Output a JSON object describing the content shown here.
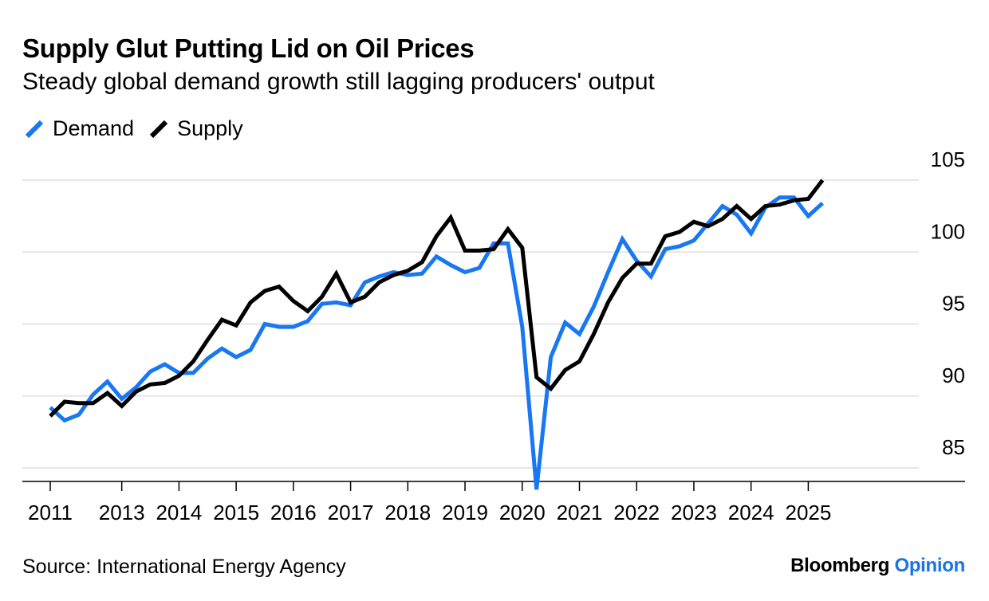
{
  "header": {
    "title": "Supply Glut Putting Lid on Oil Prices",
    "subtitle": "Steady global demand growth still lagging producers' output"
  },
  "footer": {
    "source": "Source: International Energy Agency",
    "brand_main": "Bloomberg",
    "brand_accent": "Opinion"
  },
  "colors": {
    "demand": "#1877f2",
    "supply": "#000000",
    "grid": "#e6e6e6",
    "brand_accent": "#1a73e8"
  },
  "chart_data": {
    "type": "line",
    "title": "Supply Glut Putting Lid on Oil Prices",
    "subtitle": "Steady global demand growth still lagging producers' output",
    "xlabel": "",
    "ylabel": "",
    "y_axis_side": "right",
    "ylim": [
      84,
      105
    ],
    "y_ticks": [
      85,
      90,
      95,
      100,
      105
    ],
    "x_range": [
      2011.0,
      2025.75
    ],
    "x_ticks": [
      {
        "value": 2011.0,
        "label": "2011"
      },
      {
        "value": 2012.25,
        "label": "2013"
      },
      {
        "value": 2013.25,
        "label": "2014"
      },
      {
        "value": 2014.25,
        "label": "2015"
      },
      {
        "value": 2015.25,
        "label": "2016"
      },
      {
        "value": 2016.25,
        "label": "2017"
      },
      {
        "value": 2017.25,
        "label": "2018"
      },
      {
        "value": 2018.25,
        "label": "2019"
      },
      {
        "value": 2019.25,
        "label": "2020"
      },
      {
        "value": 2020.25,
        "label": "2021"
      },
      {
        "value": 2021.25,
        "label": "2022"
      },
      {
        "value": 2022.25,
        "label": "2023"
      },
      {
        "value": 2023.25,
        "label": "2024"
      },
      {
        "value": 2024.25,
        "label": "2025"
      }
    ],
    "grid": true,
    "legend_position": "top-left",
    "series": [
      {
        "name": "Demand",
        "color": "#1877f2",
        "points": [
          [
            2011.0,
            89.2
          ],
          [
            2011.25,
            88.3
          ],
          [
            2011.5,
            88.7
          ],
          [
            2011.75,
            90.1
          ],
          [
            2012.0,
            91.0
          ],
          [
            2012.25,
            89.8
          ],
          [
            2012.5,
            90.6
          ],
          [
            2012.75,
            91.7
          ],
          [
            2013.0,
            92.2
          ],
          [
            2013.25,
            91.6
          ],
          [
            2013.5,
            91.6
          ],
          [
            2013.75,
            92.6
          ],
          [
            2014.0,
            93.3
          ],
          [
            2014.25,
            92.7
          ],
          [
            2014.5,
            93.2
          ],
          [
            2014.75,
            95.0
          ],
          [
            2015.0,
            94.8
          ],
          [
            2015.25,
            94.8
          ],
          [
            2015.5,
            95.2
          ],
          [
            2015.75,
            96.4
          ],
          [
            2016.0,
            96.5
          ],
          [
            2016.25,
            96.3
          ],
          [
            2016.5,
            97.9
          ],
          [
            2016.75,
            98.3
          ],
          [
            2017.0,
            98.6
          ],
          [
            2017.25,
            98.4
          ],
          [
            2017.5,
            98.5
          ],
          [
            2017.75,
            99.7
          ],
          [
            2018.0,
            99.1
          ],
          [
            2018.25,
            98.6
          ],
          [
            2018.5,
            98.9
          ],
          [
            2018.75,
            100.6
          ],
          [
            2019.0,
            100.6
          ],
          [
            2019.25,
            94.8
          ],
          [
            2019.5,
            83.5
          ],
          [
            2019.75,
            92.7
          ],
          [
            2020.0,
            95.1
          ],
          [
            2020.25,
            94.3
          ],
          [
            2020.5,
            96.2
          ],
          [
            2020.75,
            98.6
          ],
          [
            2021.0,
            100.9
          ],
          [
            2021.25,
            99.4
          ],
          [
            2021.5,
            98.3
          ],
          [
            2021.75,
            100.2
          ],
          [
            2022.0,
            100.4
          ],
          [
            2022.25,
            100.8
          ],
          [
            2022.5,
            102.0
          ],
          [
            2022.75,
            103.2
          ],
          [
            2023.0,
            102.6
          ],
          [
            2023.25,
            101.3
          ],
          [
            2023.5,
            103.1
          ],
          [
            2023.75,
            103.8
          ],
          [
            2024.0,
            103.8
          ],
          [
            2024.25,
            102.5
          ],
          [
            2024.5,
            103.4
          ]
        ]
      },
      {
        "name": "Supply",
        "color": "#000000",
        "points": [
          [
            2011.0,
            88.6
          ],
          [
            2011.25,
            89.6
          ],
          [
            2011.5,
            89.5
          ],
          [
            2011.75,
            89.5
          ],
          [
            2012.0,
            90.2
          ],
          [
            2012.25,
            89.3
          ],
          [
            2012.5,
            90.3
          ],
          [
            2012.75,
            90.8
          ],
          [
            2013.0,
            90.9
          ],
          [
            2013.25,
            91.4
          ],
          [
            2013.5,
            92.4
          ],
          [
            2013.75,
            93.9
          ],
          [
            2014.0,
            95.3
          ],
          [
            2014.25,
            94.9
          ],
          [
            2014.5,
            96.5
          ],
          [
            2014.75,
            97.3
          ],
          [
            2015.0,
            97.6
          ],
          [
            2015.25,
            96.6
          ],
          [
            2015.5,
            95.9
          ],
          [
            2015.75,
            96.9
          ],
          [
            2016.0,
            98.5
          ],
          [
            2016.25,
            96.5
          ],
          [
            2016.5,
            96.9
          ],
          [
            2016.75,
            97.9
          ],
          [
            2017.0,
            98.4
          ],
          [
            2017.25,
            98.7
          ],
          [
            2017.5,
            99.3
          ],
          [
            2017.75,
            101.1
          ],
          [
            2018.0,
            102.4
          ],
          [
            2018.25,
            100.1
          ],
          [
            2018.5,
            100.1
          ],
          [
            2018.75,
            100.2
          ],
          [
            2019.0,
            101.6
          ],
          [
            2019.25,
            100.3
          ],
          [
            2019.5,
            91.3
          ],
          [
            2019.75,
            90.5
          ],
          [
            2020.0,
            91.8
          ],
          [
            2020.25,
            92.4
          ],
          [
            2020.5,
            94.3
          ],
          [
            2020.75,
            96.5
          ],
          [
            2021.0,
            98.2
          ],
          [
            2021.25,
            99.2
          ],
          [
            2021.5,
            99.2
          ],
          [
            2021.75,
            101.1
          ],
          [
            2022.0,
            101.4
          ],
          [
            2022.25,
            102.1
          ],
          [
            2022.5,
            101.8
          ],
          [
            2022.75,
            102.3
          ],
          [
            2023.0,
            103.2
          ],
          [
            2023.25,
            102.3
          ],
          [
            2023.5,
            103.2
          ],
          [
            2023.75,
            103.3
          ],
          [
            2024.0,
            103.6
          ],
          [
            2024.25,
            103.7
          ],
          [
            2024.5,
            105.0
          ]
        ]
      }
    ]
  }
}
